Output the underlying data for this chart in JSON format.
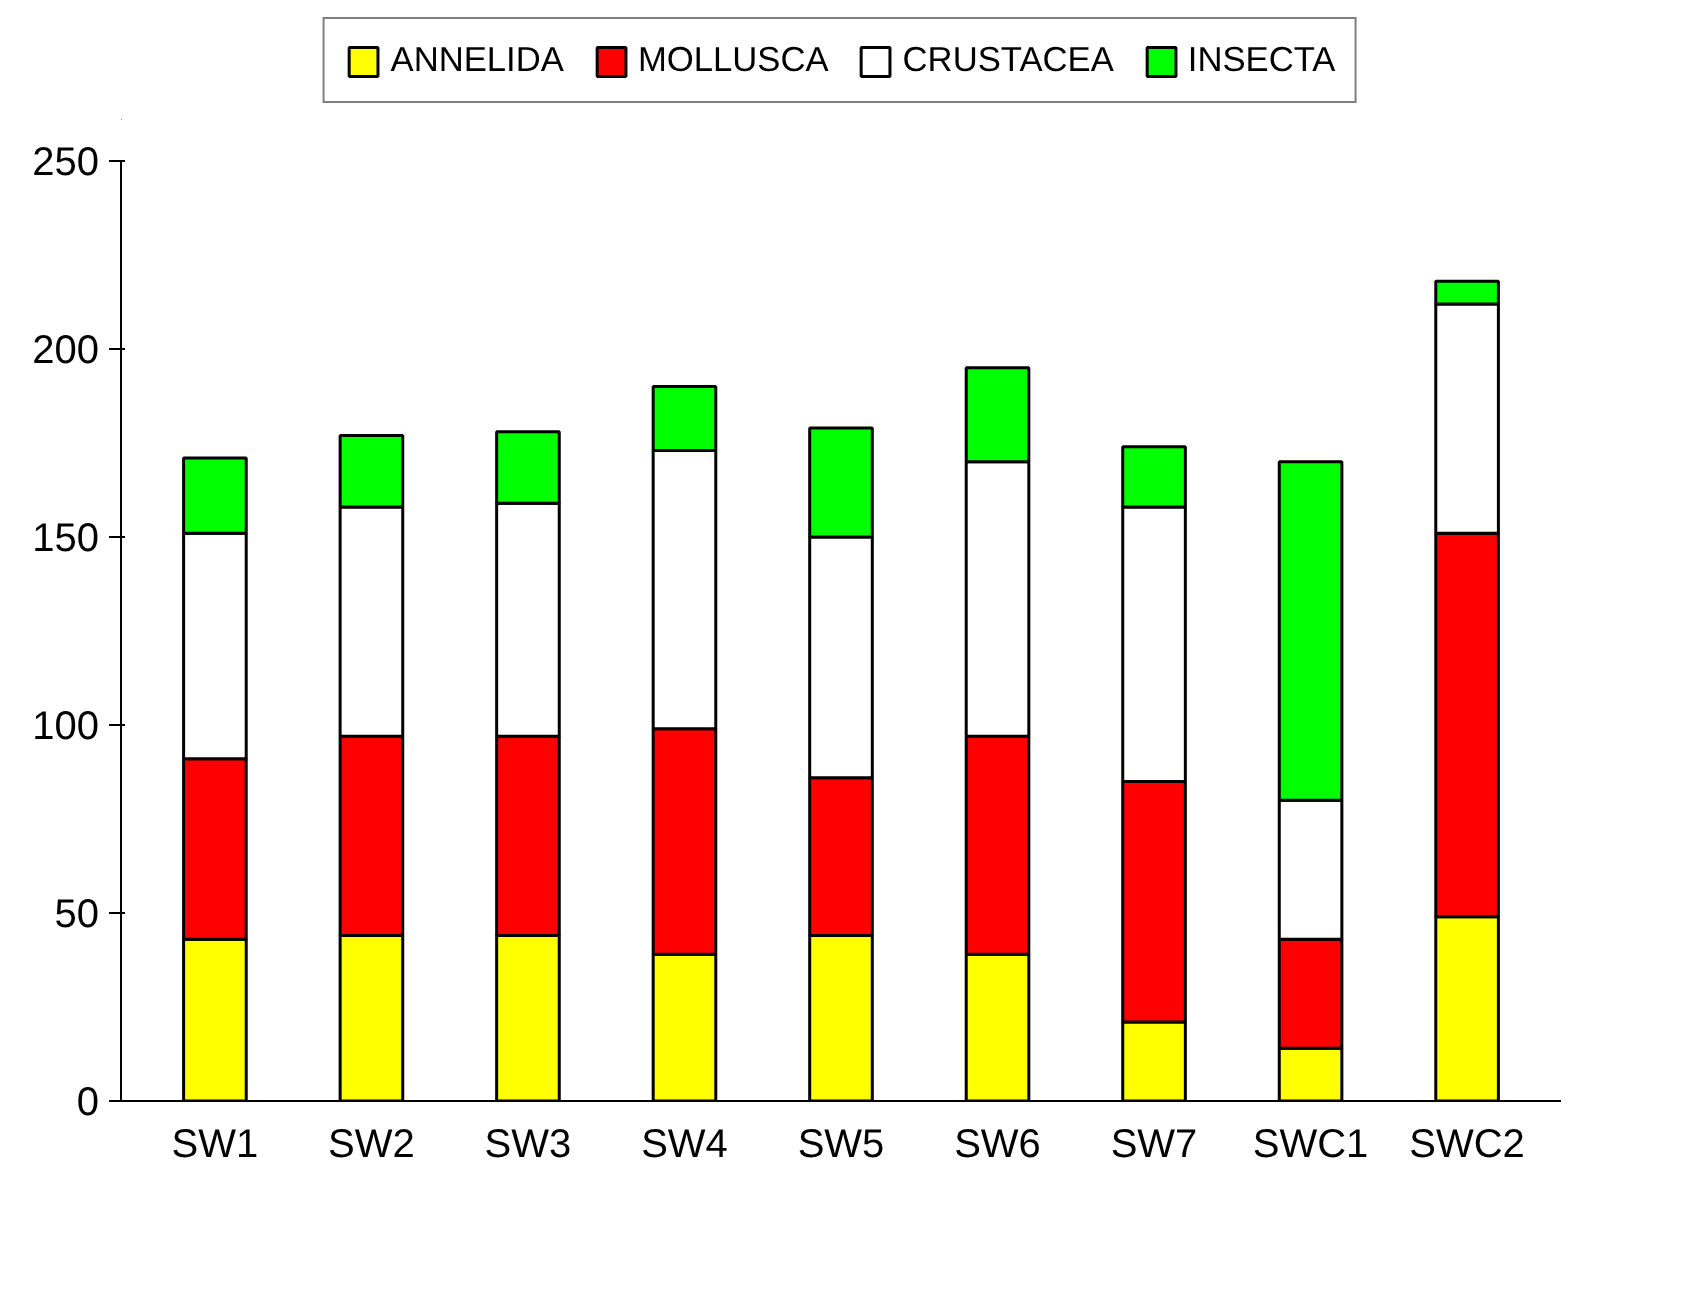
{
  "chart_data": {
    "type": "bar",
    "stacked": true,
    "categories": [
      "SW1",
      "SW2",
      "SW3",
      "SW4",
      "SW5",
      "SW6",
      "SW7",
      "SWC1",
      "SWC2"
    ],
    "series": [
      {
        "name": "ANNELIDA",
        "color": "#ffff00",
        "values": [
          43,
          44,
          44,
          39,
          44,
          39,
          21,
          14,
          49
        ]
      },
      {
        "name": "MOLLUSCA",
        "color": "#ff0000",
        "values": [
          48,
          53,
          53,
          60,
          42,
          58,
          64,
          29,
          102
        ]
      },
      {
        "name": "CRUSTACEA",
        "color": "#ffffff",
        "values": [
          60,
          61,
          62,
          74,
          64,
          73,
          73,
          37,
          61
        ]
      },
      {
        "name": "INSECTA",
        "color": "#00ff00",
        "values": [
          20,
          19,
          19,
          17,
          29,
          25,
          16,
          90,
          6
        ]
      }
    ],
    "ylim": [
      0,
      250
    ],
    "yticks": [
      0,
      50,
      100,
      150,
      200,
      250
    ],
    "grid": false,
    "legend": "top"
  }
}
